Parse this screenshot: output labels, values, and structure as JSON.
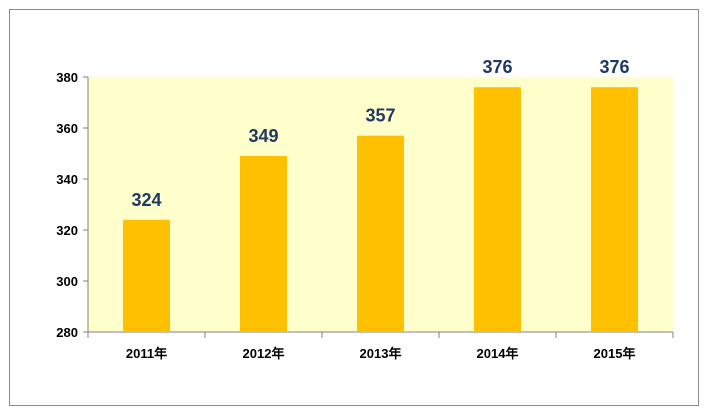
{
  "chart_data": {
    "type": "bar",
    "categories": [
      "2011年",
      "2012年",
      "2013年",
      "2014年",
      "2015年"
    ],
    "values": [
      324,
      349,
      357,
      376,
      376
    ],
    "data_labels": [
      "324",
      "349",
      "357",
      "376",
      "376"
    ],
    "title": "",
    "xlabel": "",
    "ylabel": "",
    "ylim": [
      280,
      380
    ],
    "yticks": [
      "280",
      "300",
      "320",
      "340",
      "360",
      "380"
    ],
    "grid": false,
    "legend": "none"
  },
  "colors": {
    "plot_background": "#ffffcc",
    "bar": "#ffc000",
    "data_label": "#1f3864",
    "axis": "#808080"
  }
}
